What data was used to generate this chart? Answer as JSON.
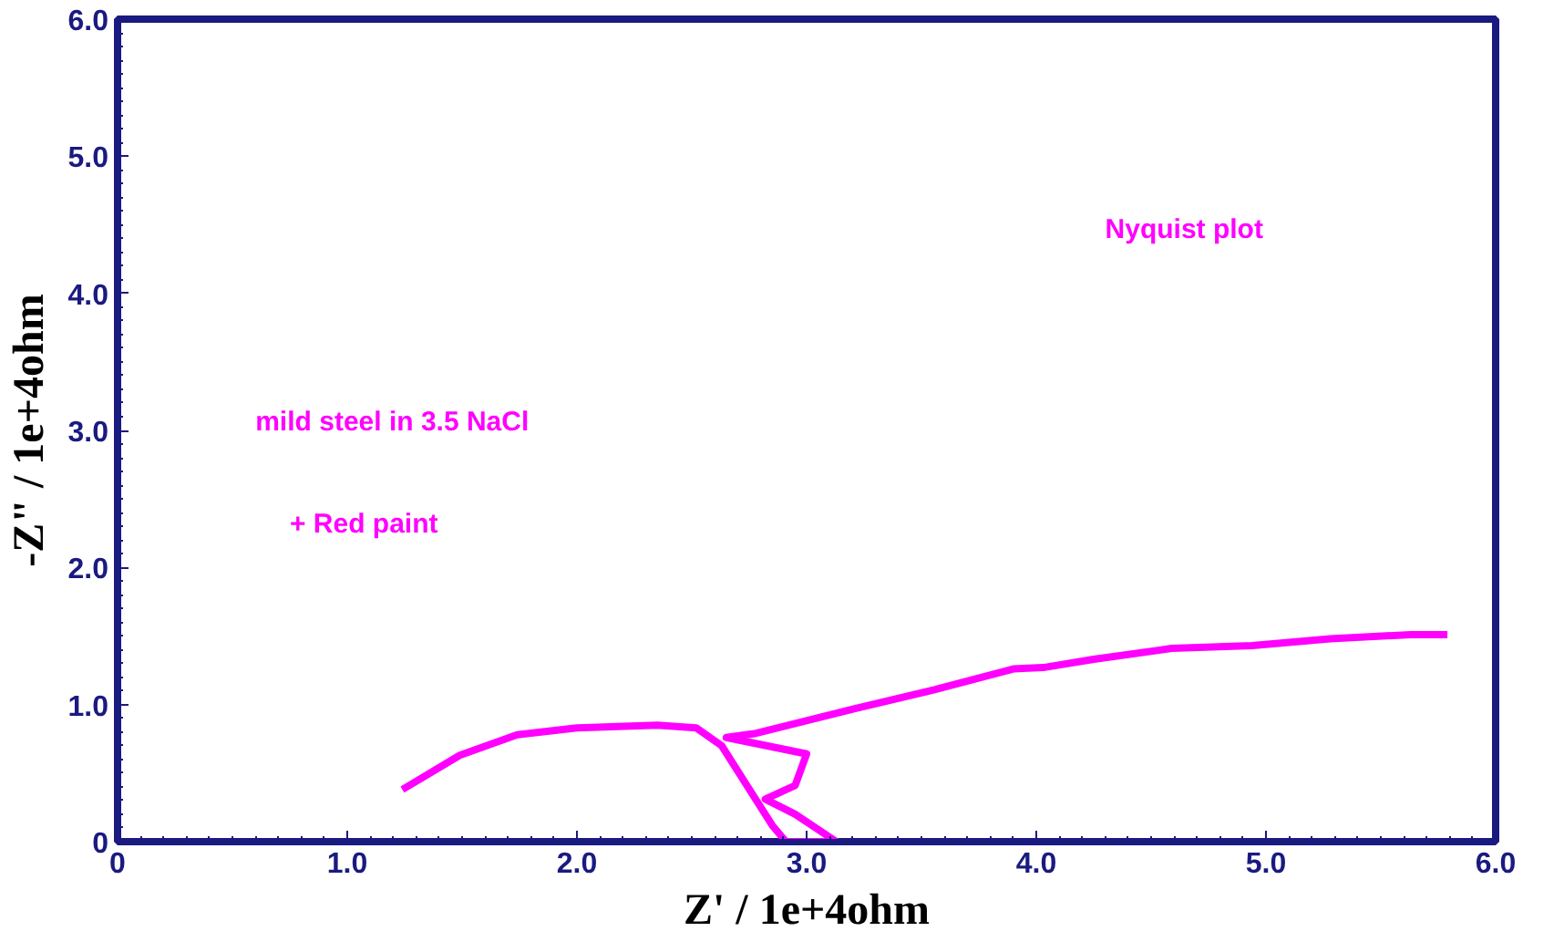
{
  "chart_data": {
    "type": "line",
    "xlabel": "Z' / 1e+4ohm",
    "ylabel": "-Z\" / 1e+4ohm",
    "x": [
      1.24,
      1.49,
      1.74,
      2.0,
      2.35,
      2.52,
      2.63,
      2.74,
      2.85,
      2.91,
      3.13,
      2.95,
      2.82,
      2.95,
      3.0,
      2.65,
      2.78,
      3.21,
      3.56,
      3.9,
      4.03,
      4.25,
      4.59,
      4.94,
      5.28,
      5.63,
      5.79
    ],
    "series": [
      {
        "color": "#ff00ff",
        "values": [
          0.38,
          0.63,
          0.78,
          0.83,
          0.85,
          0.83,
          0.7,
          0.41,
          0.12,
          0.0,
          0.0,
          0.2,
          0.31,
          0.41,
          0.64,
          0.76,
          0.79,
          0.97,
          1.11,
          1.26,
          1.27,
          1.33,
          1.41,
          1.43,
          1.48,
          1.51,
          1.51
        ]
      }
    ],
    "xlim": [
      0,
      6
    ],
    "ylim": [
      0,
      6
    ],
    "xticks": [
      0,
      {
        "value": 1,
        "label": "1.0"
      },
      {
        "value": 2,
        "label": "2.0"
      },
      {
        "value": 3,
        "label": "3.0"
      },
      {
        "value": 4,
        "label": "4.0"
      },
      {
        "value": 5,
        "label": "5.0"
      },
      {
        "value": 6,
        "label": "6.0"
      }
    ],
    "yticks": [
      0,
      {
        "value": 1,
        "label": "1.0"
      },
      {
        "value": 2,
        "label": "2.0"
      },
      {
        "value": 3,
        "label": "3.0"
      },
      {
        "value": 4,
        "label": "4.0"
      },
      {
        "value": 5,
        "label": "5.0"
      },
      {
        "value": 6,
        "label": "6.0"
      }
    ],
    "annotations": [
      "Nyquist plot",
      "mild steel in 3.5 NaCl",
      "+ Red paint"
    ],
    "grid": false,
    "marker": "none",
    "line_style": "solid"
  }
}
